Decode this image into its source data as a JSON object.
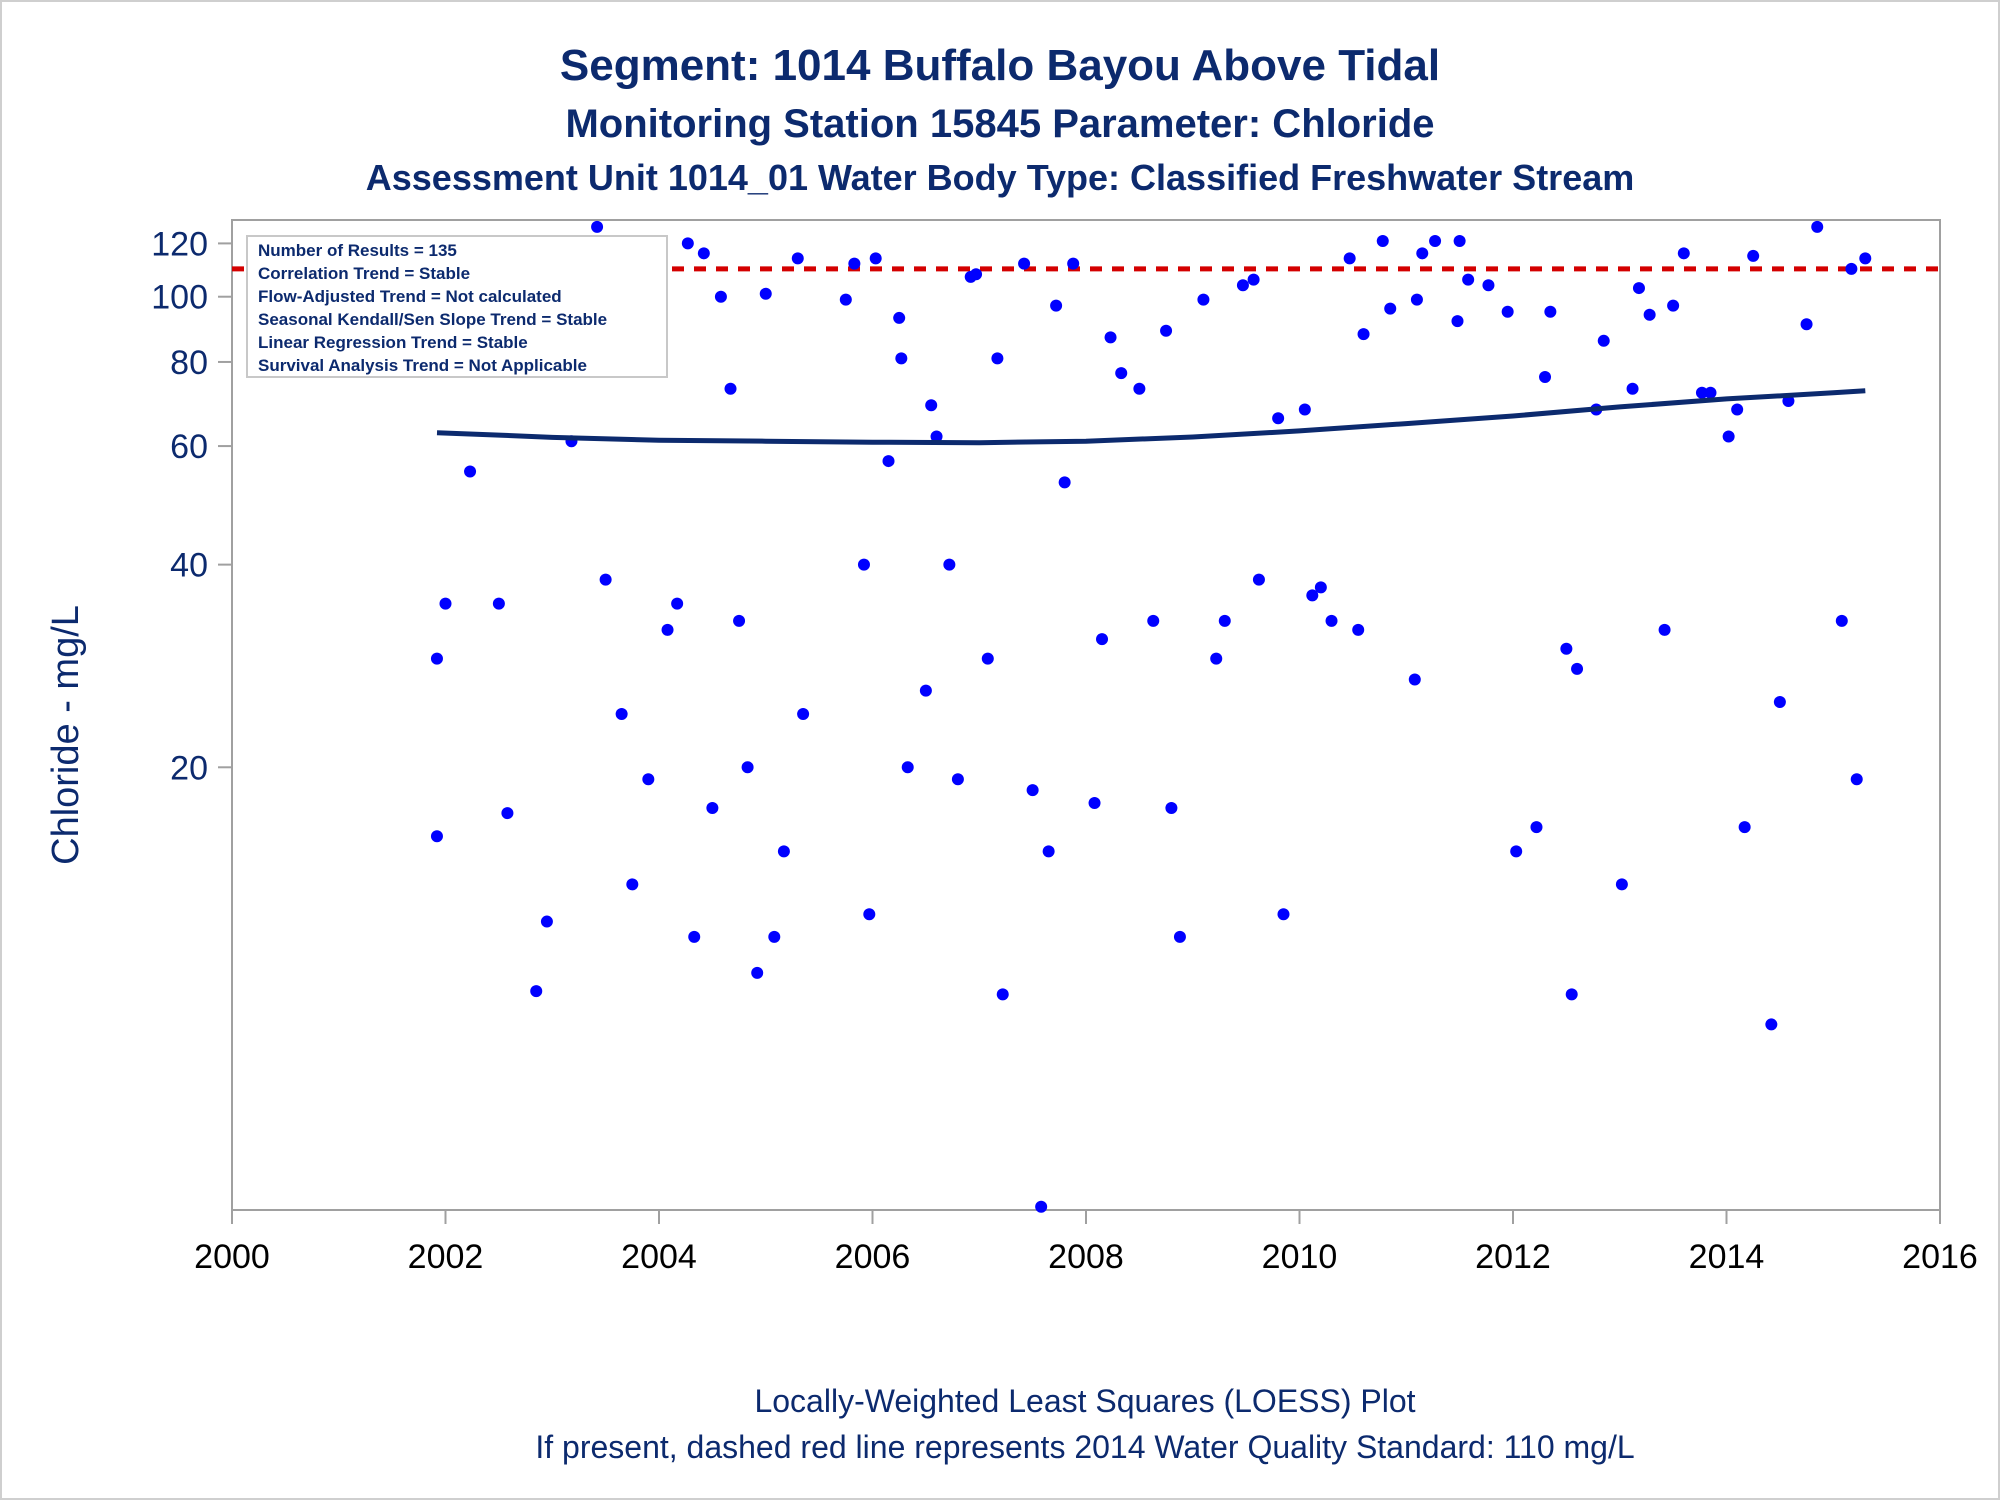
{
  "chart_data": {
    "type": "scatter",
    "title": "Segment: 1014  Buffalo Bayou Above Tidal",
    "subtitle": "Monitoring Station 15845 Parameter: Chloride",
    "subtitle2": "Assessment Unit 1014_01   Water Body Type: Classified Freshwater Stream",
    "ylabel": "Chloride - mg/L",
    "xlabel": "",
    "footnote1": "Locally-Weighted Least Squares (LOESS) Plot",
    "footnote2": "If present, dashed red line represents 2014 Water Quality Standard: 110    mg/L",
    "y_scale": "log",
    "xlim": [
      2000,
      2016
    ],
    "ylim": [
      4.4,
      130
    ],
    "x_ticks": [
      2000,
      2002,
      2004,
      2006,
      2008,
      2010,
      2012,
      2014,
      2016
    ],
    "y_ticks": [
      20,
      40,
      60,
      80,
      100,
      120
    ],
    "grid": false,
    "stats": [
      "Number of Results = 135",
      "Correlation Trend = Stable",
      "Flow-Adjusted Trend = Not calculated",
      "Seasonal Kendall/Sen Slope Trend = Stable",
      "Linear Regression Trend = Stable",
      "Survival Analysis Trend = Not Applicable"
    ],
    "stats_placement": "top-left",
    "standard": {
      "value": 110,
      "style": "dashed",
      "color": "#d40000"
    },
    "colors": {
      "points": "#0000ff",
      "trend": "#0c2a6e",
      "text": "#0c2a6e",
      "axis": "#a0a0a0"
    },
    "points": [
      [
        2001.92,
        29
      ],
      [
        2001.92,
        15.8
      ],
      [
        2002.0,
        35
      ],
      [
        2002.1,
        95
      ],
      [
        2002.17,
        88
      ],
      [
        2002.23,
        55
      ],
      [
        2002.33,
        118
      ],
      [
        2002.42,
        118
      ],
      [
        2002.5,
        35
      ],
      [
        2002.58,
        17.1
      ],
      [
        2002.65,
        107
      ],
      [
        2002.75,
        104
      ],
      [
        2002.85,
        9.3
      ],
      [
        2002.95,
        11.8
      ],
      [
        2003.03,
        79
      ],
      [
        2003.1,
        90
      ],
      [
        2003.18,
        61
      ],
      [
        2003.25,
        119
      ],
      [
        2003.33,
        120
      ],
      [
        2003.42,
        127
      ],
      [
        2003.58,
        115
      ],
      [
        2003.5,
        38
      ],
      [
        2003.65,
        24
      ],
      [
        2003.75,
        13.4
      ],
      [
        2003.83,
        92
      ],
      [
        2003.9,
        19.2
      ],
      [
        2004.0,
        105
      ],
      [
        2004.08,
        32
      ],
      [
        2004.17,
        35
      ],
      [
        2004.27,
        120
      ],
      [
        2004.33,
        11.2
      ],
      [
        2004.42,
        116
      ],
      [
        2004.5,
        17.4
      ],
      [
        2004.58,
        100
      ],
      [
        2004.67,
        73
      ],
      [
        2004.75,
        33
      ],
      [
        2004.83,
        20
      ],
      [
        2004.92,
        9.9
      ],
      [
        2005.0,
        101
      ],
      [
        2005.08,
        11.2
      ],
      [
        2005.17,
        15.0
      ],
      [
        2005.3,
        114
      ],
      [
        2005.35,
        24
      ],
      [
        2005.75,
        99
      ],
      [
        2005.83,
        112
      ],
      [
        2005.92,
        40
      ],
      [
        2005.97,
        12.1
      ],
      [
        2006.03,
        114
      ],
      [
        2006.15,
        57
      ],
      [
        2006.25,
        93
      ],
      [
        2006.27,
        81
      ],
      [
        2006.33,
        20
      ],
      [
        2006.5,
        26
      ],
      [
        2006.55,
        69
      ],
      [
        2006.6,
        62
      ],
      [
        2006.72,
        40
      ],
      [
        2006.8,
        19.2
      ],
      [
        2006.92,
        107
      ],
      [
        2006.97,
        108
      ],
      [
        2007.08,
        29
      ],
      [
        2007.17,
        81
      ],
      [
        2007.22,
        9.2
      ],
      [
        2007.42,
        112
      ],
      [
        2007.5,
        18.5
      ],
      [
        2007.58,
        4.45
      ],
      [
        2007.65,
        15.0
      ],
      [
        2007.72,
        97
      ],
      [
        2007.8,
        53
      ],
      [
        2007.88,
        112
      ],
      [
        2008.08,
        17.7
      ],
      [
        2008.15,
        31
      ],
      [
        2008.23,
        87
      ],
      [
        2008.33,
        77
      ],
      [
        2008.5,
        73
      ],
      [
        2008.63,
        33
      ],
      [
        2008.75,
        89
      ],
      [
        2008.8,
        17.4
      ],
      [
        2008.88,
        11.2
      ],
      [
        2009.1,
        99
      ],
      [
        2009.22,
        29
      ],
      [
        2009.3,
        33
      ],
      [
        2009.47,
        104
      ],
      [
        2009.57,
        106
      ],
      [
        2009.62,
        38
      ],
      [
        2009.8,
        66
      ],
      [
        2009.85,
        12.1
      ],
      [
        2010.05,
        68
      ],
      [
        2010.12,
        36
      ],
      [
        2010.2,
        37
      ],
      [
        2010.3,
        33
      ],
      [
        2010.47,
        114
      ],
      [
        2010.55,
        32
      ],
      [
        2010.6,
        88
      ],
      [
        2010.78,
        121
      ],
      [
        2010.85,
        96
      ],
      [
        2011.1,
        99
      ],
      [
        2011.08,
        27
      ],
      [
        2011.15,
        116
      ],
      [
        2011.27,
        121
      ],
      [
        2011.48,
        92
      ],
      [
        2011.5,
        121
      ],
      [
        2011.58,
        106
      ],
      [
        2011.77,
        104
      ],
      [
        2011.95,
        95
      ],
      [
        2012.03,
        15.0
      ],
      [
        2012.22,
        16.3
      ],
      [
        2012.3,
        76
      ],
      [
        2012.35,
        95
      ],
      [
        2012.5,
        30
      ],
      [
        2012.55,
        9.2
      ],
      [
        2012.6,
        28
      ],
      [
        2012.78,
        68
      ],
      [
        2012.85,
        86
      ],
      [
        2013.02,
        13.4
      ],
      [
        2013.12,
        73
      ],
      [
        2013.18,
        103
      ],
      [
        2013.28,
        94
      ],
      [
        2013.42,
        32
      ],
      [
        2013.5,
        97
      ],
      [
        2013.6,
        116
      ],
      [
        2013.77,
        72
      ],
      [
        2013.85,
        72
      ],
      [
        2014.02,
        62
      ],
      [
        2014.1,
        68
      ],
      [
        2014.17,
        16.3
      ],
      [
        2014.25,
        115
      ],
      [
        2014.42,
        8.3
      ],
      [
        2014.5,
        25
      ],
      [
        2014.58,
        70
      ],
      [
        2014.75,
        91
      ],
      [
        2014.85,
        127
      ],
      [
        2015.08,
        33
      ],
      [
        2015.17,
        110
      ],
      [
        2015.22,
        19.2
      ],
      [
        2015.3,
        114
      ]
    ],
    "loess": [
      [
        2001.92,
        62.8
      ],
      [
        2002.5,
        62.3
      ],
      [
        2003.0,
        61.8
      ],
      [
        2004.0,
        61.2
      ],
      [
        2005.0,
        61.0
      ],
      [
        2006.0,
        60.8
      ],
      [
        2007.0,
        60.7
      ],
      [
        2008.0,
        61.0
      ],
      [
        2009.0,
        61.9
      ],
      [
        2010.0,
        63.2
      ],
      [
        2011.0,
        64.8
      ],
      [
        2012.0,
        66.5
      ],
      [
        2013.0,
        68.6
      ],
      [
        2014.0,
        70.5
      ],
      [
        2015.0,
        72.0
      ],
      [
        2015.3,
        72.5
      ]
    ]
  }
}
